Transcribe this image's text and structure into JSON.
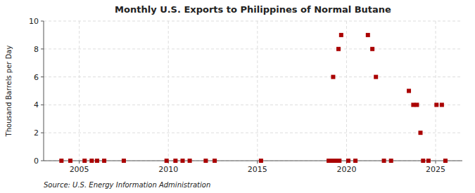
{
  "chart_data": {
    "type": "scatter",
    "title": "Monthly U.S. Exports to Philippines of Normal Butane",
    "y_label": "Thousand Barrels per Day",
    "annotations": [
      "Source: U.S. Energy Information Administration"
    ],
    "x": [
      2004.0,
      2004.5,
      2005.3,
      2005.7,
      2006.0,
      2006.4,
      2007.5,
      2009.9,
      2010.4,
      2010.8,
      2011.2,
      2012.1,
      2012.6,
      2015.2,
      2019.0,
      2019.2,
      2019.4,
      2019.6,
      2019.25,
      2019.55,
      2019.7,
      2020.1,
      2020.5,
      2021.2,
      2021.45,
      2021.65,
      2022.1,
      2022.5,
      2023.5,
      2023.75,
      2023.95,
      2024.15,
      2024.3,
      2024.6,
      2025.05,
      2025.35,
      2025.55
    ],
    "values": [
      0,
      0,
      0,
      0,
      0,
      0,
      0,
      0,
      0,
      0,
      0,
      0,
      0,
      0,
      0,
      0,
      0,
      0,
      6,
      8,
      9,
      0,
      0,
      9,
      8,
      6,
      0,
      0,
      5,
      4,
      4,
      2,
      0,
      0,
      4,
      4,
      0
    ],
    "color": "#aa0000",
    "marker": "square",
    "xlim": [
      2003.0,
      2026.5
    ],
    "ylim": [
      0,
      10
    ],
    "xticks": [
      2005,
      2010,
      2015,
      2020,
      2025
    ],
    "yticks": [
      0,
      2,
      4,
      6,
      8,
      10
    ],
    "grid": true
  }
}
